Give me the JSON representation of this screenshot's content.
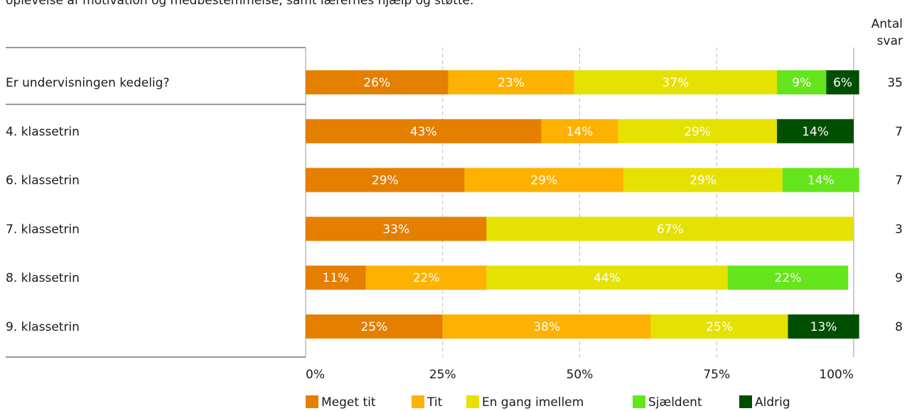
{
  "intro_text": "oplevelse af motivation og medbestemmelse, samt lærernes hjælp og støtte.",
  "count_header": {
    "line1": "Antal",
    "line2": "svar"
  },
  "colors": {
    "meget_tit": "#E57F00",
    "tit": "#FDB100",
    "en_gang_imellem": "#E5E100",
    "sjaeldent": "#65E51B",
    "aldrig": "#004F00"
  },
  "chart_data": {
    "type": "bar",
    "orientation": "horizontal",
    "stacked": true,
    "percent": true,
    "xlim": [
      0,
      100
    ],
    "x_ticks": [
      "0%",
      "25%",
      "50%",
      "75%",
      "100%"
    ],
    "grid": true,
    "legend_position": "bottom",
    "categories": [
      "Er undervisningen kedelig?",
      "4. klassetrin",
      "6. klassetrin",
      "7. klassetrin",
      "8. klassetrin",
      "9. klassetrin"
    ],
    "counts": [
      "35",
      "7",
      "7",
      "3",
      "9",
      "8"
    ],
    "series": [
      {
        "name": "Meget tit",
        "color": "#E57F00",
        "values": [
          26,
          43,
          29,
          33,
          11,
          25
        ]
      },
      {
        "name": "Tit",
        "color": "#FDB100",
        "values": [
          23,
          14,
          29,
          0,
          22,
          38
        ]
      },
      {
        "name": "En gang imellem",
        "color": "#E5E100",
        "values": [
          37,
          29,
          29,
          67,
          44,
          25
        ]
      },
      {
        "name": "Sjældent",
        "color": "#65E51B",
        "values": [
          9,
          0,
          14,
          0,
          22,
          0
        ]
      },
      {
        "name": "Aldrig",
        "color": "#004F00",
        "values": [
          6,
          14,
          0,
          0,
          0,
          13
        ]
      }
    ]
  }
}
